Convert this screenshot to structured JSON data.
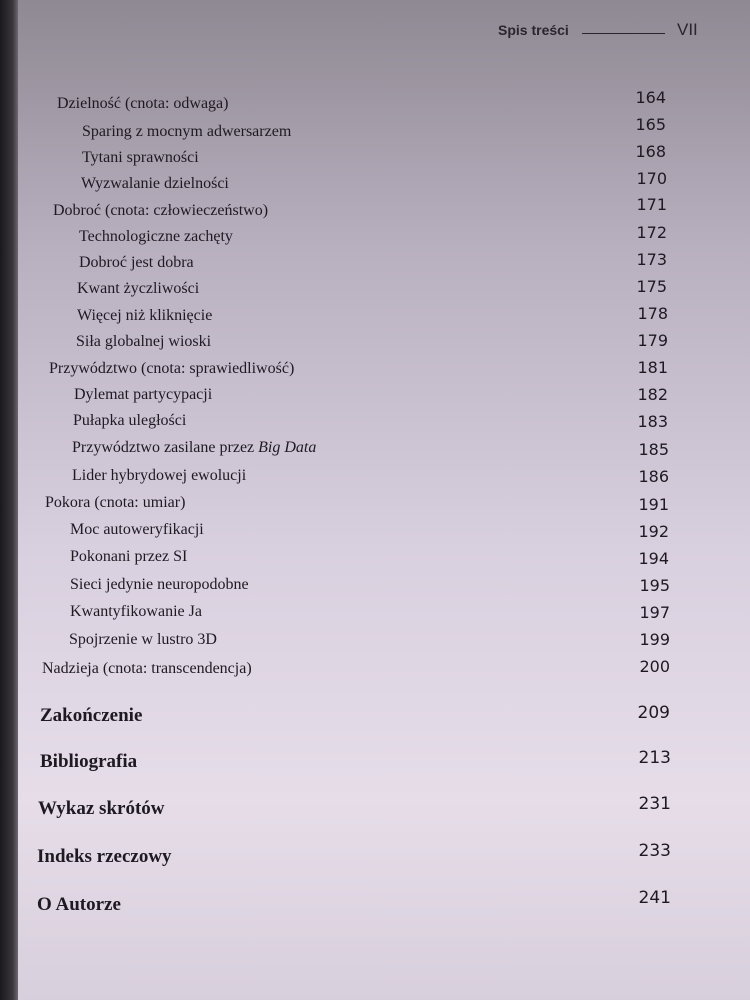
{
  "header": {
    "title": "Spis treści",
    "page": "VII"
  },
  "entries": [
    {
      "title": "Dzielność (cnota: odwaga)",
      "page": "164"
    },
    {
      "title": "Sparing z mocnym adwersarzem",
      "page": "165"
    },
    {
      "title": "Tytani sprawności",
      "page": "168"
    },
    {
      "title": "Wyzwalanie dzielności",
      "page": "170"
    },
    {
      "title": "Dobroć (cnota: człowieczeństwo)",
      "page": "171"
    },
    {
      "title": "Technologiczne zachęty",
      "page": "172"
    },
    {
      "title": "Dobroć jest dobra",
      "page": "173"
    },
    {
      "title": "Kwant życzliwości",
      "page": "175"
    },
    {
      "title": "Więcej niż kliknięcie",
      "page": "178"
    },
    {
      "title": "Siła globalnej wioski",
      "page": "179"
    },
    {
      "title": "Przywództwo (cnota: sprawiedliwość)",
      "page": "181"
    },
    {
      "title": "Dylemat partycypacji",
      "page": "182"
    },
    {
      "title": "Pułapka uległości",
      "page": "183"
    },
    {
      "title": "Przywództwo zasilane przez ",
      "title_italic": "Big Data",
      "page": "185"
    },
    {
      "title": "Lider hybrydowej ewolucji",
      "page": "186"
    },
    {
      "title": "Pokora (cnota: umiar)",
      "page": "191"
    },
    {
      "title": "Moc autoweryfikacji",
      "page": "192"
    },
    {
      "title": "Pokonani przez SI",
      "page": "194"
    },
    {
      "title": "Sieci jedynie neuropodobne",
      "page": "195"
    },
    {
      "title": "Kwantyfikowanie Ja",
      "page": "197"
    },
    {
      "title": "Spojrzenie w lustro 3D",
      "page": "199"
    },
    {
      "title": "Nadzieja (cnota: transcendencja)",
      "page": "200"
    },
    {
      "title": "Zakończenie",
      "page": "209"
    },
    {
      "title": "Bibliografia",
      "page": "213"
    },
    {
      "title": "Wykaz skrótów",
      "page": "231"
    },
    {
      "title": "Indeks rzeczowy",
      "page": "233"
    },
    {
      "title": "O Autorze",
      "page": "241"
    }
  ]
}
